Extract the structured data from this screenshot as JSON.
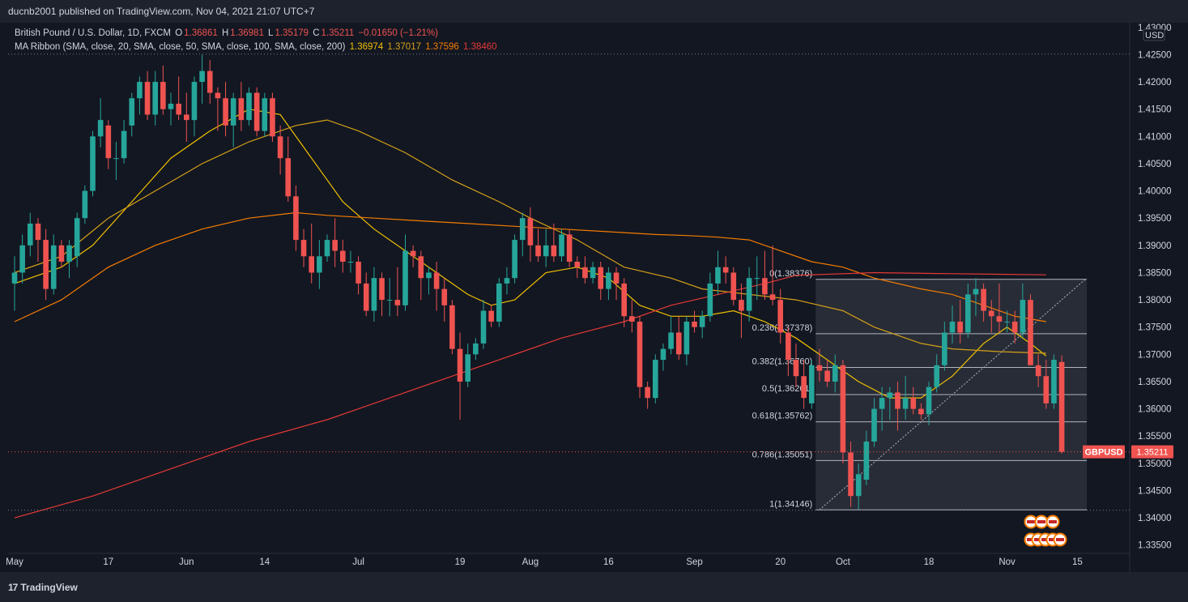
{
  "header": {
    "publisher": "ducnb2001 published on TradingView.com, Nov 04, 2021 21:07 UTC+7"
  },
  "legend": {
    "symbol": "British Pound / U.S. Dollar, 1D, FXCM",
    "o_label": "O",
    "o": "1.36861",
    "h_label": "H",
    "h": "1.36981",
    "l_label": "L",
    "l": "1.35179",
    "c_label": "C",
    "c": "1.35211",
    "change": "−0.01650 (−1.21%)",
    "ma_label": "MA Ribbon (SMA, close, 20, SMA, close, 50, SMA, close, 100, SMA, close, 200)",
    "ma20": "1.36974",
    "ma50": "1.37017",
    "ma100": "1.37596",
    "ma200": "1.38460"
  },
  "footer": {
    "brand": "TradingView"
  },
  "colors": {
    "up": "#26a69a",
    "down": "#ef5350",
    "ma20": "#f0c000",
    "ma50": "#d4a017",
    "ma100": "#f57c00",
    "ma200": "#e53935"
  },
  "chart_data": {
    "type": "candlestick",
    "currency": "USD",
    "y_ticks": [
      "1.43000",
      "1.42500",
      "1.42000",
      "1.41500",
      "1.41000",
      "1.40500",
      "1.40000",
      "1.39500",
      "1.39000",
      "1.38500",
      "1.38000",
      "1.37500",
      "1.37000",
      "1.36500",
      "1.36000",
      "1.35500",
      "1.35000",
      "1.34500",
      "1.34000",
      "1.33500"
    ],
    "ylim": [
      1.3305,
      1.4325
    ],
    "x_labels": [
      {
        "i": 0,
        "label": "May"
      },
      {
        "i": 12,
        "label": "17"
      },
      {
        "i": 22,
        "label": "Jun"
      },
      {
        "i": 32,
        "label": "14"
      },
      {
        "i": 44,
        "label": "Jul"
      },
      {
        "i": 57,
        "label": "19"
      },
      {
        "i": 66,
        "label": "Aug"
      },
      {
        "i": 76,
        "label": "16"
      },
      {
        "i": 87,
        "label": "Sep"
      },
      {
        "i": 98,
        "label": "20"
      },
      {
        "i": 106,
        "label": "Oct"
      },
      {
        "i": 117,
        "label": "18"
      },
      {
        "i": 127,
        "label": "Nov"
      },
      {
        "i": 136,
        "label": "15"
      }
    ],
    "last_price_label": "GBPUSD",
    "last_price": "1.35211",
    "high_line": 1.4251,
    "low_line": 1.3414,
    "candles": [
      [
        1.383,
        1.388,
        1.378,
        1.385
      ],
      [
        1.385,
        1.392,
        1.383,
        1.39
      ],
      [
        1.39,
        1.396,
        1.388,
        1.394
      ],
      [
        1.394,
        1.395,
        1.387,
        1.391
      ],
      [
        1.391,
        1.393,
        1.38,
        1.382
      ],
      [
        1.382,
        1.392,
        1.381,
        1.39
      ],
      [
        1.39,
        1.391,
        1.386,
        1.387
      ],
      [
        1.387,
        1.391,
        1.384,
        1.39
      ],
      [
        1.388,
        1.396,
        1.386,
        1.395
      ],
      [
        1.395,
        1.401,
        1.394,
        1.4
      ],
      [
        1.4,
        1.411,
        1.399,
        1.41
      ],
      [
        1.41,
        1.417,
        1.408,
        1.413
      ],
      [
        1.412,
        1.413,
        1.404,
        1.406
      ],
      [
        1.406,
        1.409,
        1.402,
        1.406
      ],
      [
        1.406,
        1.413,
        1.405,
        1.411
      ],
      [
        1.412,
        1.418,
        1.41,
        1.417
      ],
      [
        1.417,
        1.421,
        1.414,
        1.42
      ],
      [
        1.42,
        1.422,
        1.413,
        1.414
      ],
      [
        1.414,
        1.422,
        1.412,
        1.42
      ],
      [
        1.42,
        1.423,
        1.414,
        1.415
      ],
      [
        1.415,
        1.418,
        1.412,
        1.416
      ],
      [
        1.416,
        1.421,
        1.413,
        1.414
      ],
      [
        1.414,
        1.418,
        1.409,
        1.413
      ],
      [
        1.413,
        1.421,
        1.41,
        1.42
      ],
      [
        1.42,
        1.425,
        1.416,
        1.422
      ],
      [
        1.422,
        1.424,
        1.416,
        1.418
      ],
      [
        1.418,
        1.419,
        1.411,
        1.417
      ],
      [
        1.417,
        1.42,
        1.41,
        1.412
      ],
      [
        1.412,
        1.418,
        1.408,
        1.417
      ],
      [
        1.417,
        1.42,
        1.411,
        1.413
      ],
      [
        1.413,
        1.419,
        1.412,
        1.418
      ],
      [
        1.418,
        1.419,
        1.41,
        1.411
      ],
      [
        1.411,
        1.418,
        1.41,
        1.417
      ],
      [
        1.417,
        1.418,
        1.409,
        1.41
      ],
      [
        1.41,
        1.412,
        1.403,
        1.406
      ],
      [
        1.406,
        1.41,
        1.398,
        1.399
      ],
      [
        1.399,
        1.401,
        1.389,
        1.391
      ],
      [
        1.391,
        1.393,
        1.386,
        1.388
      ],
      [
        1.388,
        1.394,
        1.383,
        1.385
      ],
      [
        1.385,
        1.391,
        1.382,
        1.388
      ],
      [
        1.388,
        1.392,
        1.387,
        1.391
      ],
      [
        1.391,
        1.395,
        1.386,
        1.389
      ],
      [
        1.389,
        1.391,
        1.385,
        1.387
      ],
      [
        1.387,
        1.389,
        1.385,
        1.387
      ],
      [
        1.387,
        1.388,
        1.381,
        1.383
      ],
      [
        1.383,
        1.385,
        1.377,
        1.378
      ],
      [
        1.378,
        1.386,
        1.376,
        1.384
      ],
      [
        1.384,
        1.385,
        1.377,
        1.38
      ],
      [
        1.38,
        1.384,
        1.377,
        1.38
      ],
      [
        1.38,
        1.386,
        1.377,
        1.379
      ],
      [
        1.379,
        1.392,
        1.378,
        1.389
      ],
      [
        1.389,
        1.39,
        1.386,
        1.388
      ],
      [
        1.388,
        1.389,
        1.38,
        1.384
      ],
      [
        1.384,
        1.386,
        1.381,
        1.385
      ],
      [
        1.385,
        1.387,
        1.378,
        1.382
      ],
      [
        1.382,
        1.384,
        1.376,
        1.379
      ],
      [
        1.379,
        1.38,
        1.37,
        1.371
      ],
      [
        1.371,
        1.374,
        1.358,
        1.365
      ],
      [
        1.365,
        1.372,
        1.364,
        1.37
      ],
      [
        1.37,
        1.373,
        1.369,
        1.372
      ],
      [
        1.372,
        1.38,
        1.371,
        1.378
      ],
      [
        1.378,
        1.379,
        1.375,
        1.376
      ],
      [
        1.376,
        1.384,
        1.375,
        1.383
      ],
      [
        1.383,
        1.386,
        1.381,
        1.384
      ],
      [
        1.384,
        1.392,
        1.383,
        1.391
      ],
      [
        1.391,
        1.396,
        1.388,
        1.395
      ],
      [
        1.395,
        1.397,
        1.387,
        1.39
      ],
      [
        1.39,
        1.393,
        1.387,
        1.388
      ],
      [
        1.388,
        1.393,
        1.386,
        1.39
      ],
      [
        1.39,
        1.394,
        1.387,
        1.388
      ],
      [
        1.388,
        1.393,
        1.387,
        1.392
      ],
      [
        1.392,
        1.393,
        1.386,
        1.387
      ],
      [
        1.387,
        1.388,
        1.384,
        1.386
      ],
      [
        1.386,
        1.388,
        1.383,
        1.384
      ],
      [
        1.384,
        1.387,
        1.383,
        1.386
      ],
      [
        1.386,
        1.387,
        1.38,
        1.382
      ],
      [
        1.382,
        1.386,
        1.38,
        1.385
      ],
      [
        1.385,
        1.386,
        1.38,
        1.383
      ],
      [
        1.383,
        1.384,
        1.375,
        1.377
      ],
      [
        1.377,
        1.38,
        1.374,
        1.376
      ],
      [
        1.376,
        1.377,
        1.362,
        1.364
      ],
      [
        1.364,
        1.365,
        1.36,
        1.362
      ],
      [
        1.362,
        1.37,
        1.361,
        1.369
      ],
      [
        1.369,
        1.372,
        1.367,
        1.371
      ],
      [
        1.371,
        1.377,
        1.37,
        1.374
      ],
      [
        1.374,
        1.377,
        1.369,
        1.37
      ],
      [
        1.37,
        1.377,
        1.368,
        1.376
      ],
      [
        1.376,
        1.378,
        1.374,
        1.375
      ],
      [
        1.375,
        1.378,
        1.373,
        1.377
      ],
      [
        1.377,
        1.385,
        1.376,
        1.383
      ],
      [
        1.383,
        1.389,
        1.381,
        1.386
      ],
      [
        1.386,
        1.388,
        1.383,
        1.385
      ],
      [
        1.385,
        1.386,
        1.379,
        1.38
      ],
      [
        1.38,
        1.383,
        1.373,
        1.378
      ],
      [
        1.378,
        1.386,
        1.376,
        1.384
      ],
      [
        1.384,
        1.388,
        1.38,
        1.384
      ],
      [
        1.384,
        1.389,
        1.38,
        1.381
      ],
      [
        1.381,
        1.39,
        1.379,
        1.38
      ],
      [
        1.38,
        1.382,
        1.372,
        1.374
      ],
      [
        1.374,
        1.375,
        1.366,
        1.369
      ],
      [
        1.369,
        1.372,
        1.364,
        1.366
      ],
      [
        1.366,
        1.369,
        1.36,
        1.362
      ],
      [
        1.361,
        1.369,
        1.36,
        1.368
      ],
      [
        1.368,
        1.371,
        1.365,
        1.367
      ],
      [
        1.367,
        1.369,
        1.364,
        1.365
      ],
      [
        1.365,
        1.37,
        1.363,
        1.368
      ],
      [
        1.368,
        1.369,
        1.35,
        1.352
      ],
      [
        1.352,
        1.354,
        1.342,
        1.344
      ],
      [
        1.344,
        1.35,
        1.3415,
        1.348
      ],
      [
        1.347,
        1.356,
        1.346,
        1.354
      ],
      [
        1.354,
        1.362,
        1.353,
        1.36
      ],
      [
        1.36,
        1.364,
        1.356,
        1.362
      ],
      [
        1.362,
        1.364,
        1.358,
        1.363
      ],
      [
        1.363,
        1.365,
        1.356,
        1.36
      ],
      [
        1.36,
        1.366,
        1.358,
        1.362
      ],
      [
        1.362,
        1.364,
        1.359,
        1.36
      ],
      [
        1.36,
        1.361,
        1.358,
        1.359
      ],
      [
        1.359,
        1.365,
        1.357,
        1.364
      ],
      [
        1.364,
        1.37,
        1.363,
        1.368
      ],
      [
        1.368,
        1.376,
        1.367,
        1.374
      ],
      [
        1.374,
        1.379,
        1.372,
        1.376
      ],
      [
        1.376,
        1.38,
        1.372,
        1.374
      ],
      [
        1.374,
        1.383,
        1.373,
        1.381
      ],
      [
        1.381,
        1.384,
        1.377,
        1.382
      ],
      [
        1.382,
        1.383,
        1.376,
        1.378
      ],
      [
        1.378,
        1.38,
        1.374,
        1.377
      ],
      [
        1.377,
        1.383,
        1.374,
        1.376
      ],
      [
        1.376,
        1.378,
        1.374,
        1.376
      ],
      [
        1.376,
        1.378,
        1.372,
        1.374
      ],
      [
        1.374,
        1.383,
        1.373,
        1.38
      ],
      [
        1.38,
        1.381,
        1.369,
        1.368
      ],
      [
        1.368,
        1.37,
        1.364,
        1.366
      ],
      [
        1.366,
        1.369,
        1.36,
        1.361
      ],
      [
        1.361,
        1.37,
        1.36,
        1.369
      ],
      [
        1.3686,
        1.3698,
        1.3518,
        1.3521
      ]
    ],
    "ma_series": [
      {
        "period": 20,
        "color": "#f0c000",
        "values": [
          [
            0,
            1.383
          ],
          [
            6,
            1.386
          ],
          [
            10,
            1.39
          ],
          [
            15,
            1.398
          ],
          [
            20,
            1.406
          ],
          [
            25,
            1.411
          ],
          [
            30,
            1.415
          ],
          [
            34,
            1.414
          ],
          [
            38,
            1.406
          ],
          [
            42,
            1.398
          ],
          [
            46,
            1.393
          ],
          [
            50,
            1.389
          ],
          [
            54,
            1.385
          ],
          [
            58,
            1.381
          ],
          [
            61,
            1.379
          ],
          [
            64,
            1.38
          ],
          [
            68,
            1.385
          ],
          [
            72,
            1.386
          ],
          [
            76,
            1.384
          ],
          [
            80,
            1.379
          ],
          [
            84,
            1.377
          ],
          [
            88,
            1.377
          ],
          [
            92,
            1.378
          ],
          [
            96,
            1.376
          ],
          [
            100,
            1.373
          ],
          [
            104,
            1.369
          ],
          [
            108,
            1.365
          ],
          [
            112,
            1.362
          ],
          [
            116,
            1.362
          ],
          [
            120,
            1.366
          ],
          [
            124,
            1.372
          ],
          [
            127,
            1.375
          ],
          [
            130,
            1.372
          ],
          [
            132,
            1.3697
          ]
        ]
      },
      {
        "period": 50,
        "color": "#d4a017",
        "values": [
          [
            0,
            1.385
          ],
          [
            6,
            1.388
          ],
          [
            12,
            1.395
          ],
          [
            18,
            1.4
          ],
          [
            24,
            1.405
          ],
          [
            30,
            1.409
          ],
          [
            36,
            1.412
          ],
          [
            40,
            1.413
          ],
          [
            44,
            1.411
          ],
          [
            50,
            1.407
          ],
          [
            56,
            1.402
          ],
          [
            62,
            1.398
          ],
          [
            66,
            1.395
          ],
          [
            72,
            1.391
          ],
          [
            78,
            1.386
          ],
          [
            84,
            1.384
          ],
          [
            88,
            1.382
          ],
          [
            94,
            1.381
          ],
          [
            100,
            1.38
          ],
          [
            106,
            1.378
          ],
          [
            110,
            1.375
          ],
          [
            116,
            1.372
          ],
          [
            120,
            1.371
          ],
          [
            126,
            1.3705
          ],
          [
            132,
            1.3702
          ]
        ]
      },
      {
        "period": 100,
        "color": "#f57c00",
        "values": [
          [
            0,
            1.376
          ],
          [
            6,
            1.38
          ],
          [
            12,
            1.386
          ],
          [
            18,
            1.39
          ],
          [
            24,
            1.393
          ],
          [
            30,
            1.395
          ],
          [
            36,
            1.396
          ],
          [
            40,
            1.3955
          ],
          [
            46,
            1.395
          ],
          [
            52,
            1.3945
          ],
          [
            58,
            1.394
          ],
          [
            64,
            1.3935
          ],
          [
            70,
            1.393
          ],
          [
            76,
            1.3925
          ],
          [
            82,
            1.392
          ],
          [
            86,
            1.3918
          ],
          [
            90,
            1.3915
          ],
          [
            94,
            1.391
          ],
          [
            98,
            1.389
          ],
          [
            102,
            1.387
          ],
          [
            106,
            1.386
          ],
          [
            110,
            1.384
          ],
          [
            116,
            1.382
          ],
          [
            120,
            1.381
          ],
          [
            124,
            1.379
          ],
          [
            128,
            1.377
          ],
          [
            132,
            1.376
          ]
        ]
      },
      {
        "period": 200,
        "color": "#e53935",
        "values": [
          [
            0,
            1.34
          ],
          [
            10,
            1.344
          ],
          [
            20,
            1.349
          ],
          [
            30,
            1.354
          ],
          [
            40,
            1.358
          ],
          [
            50,
            1.363
          ],
          [
            60,
            1.368
          ],
          [
            70,
            1.373
          ],
          [
            78,
            1.376
          ],
          [
            84,
            1.379
          ],
          [
            90,
            1.381
          ],
          [
            96,
            1.383
          ],
          [
            100,
            1.3845
          ],
          [
            110,
            1.385
          ],
          [
            120,
            1.3848
          ],
          [
            126,
            1.3847
          ],
          [
            132,
            1.3846
          ]
        ]
      }
    ],
    "fib": {
      "levels": [
        {
          "label": "0(1.38376)",
          "value": 1.38376
        },
        {
          "label": "0.236(1.37378)",
          "value": 1.37378
        },
        {
          "label": "0.382(1.36760)",
          "value": 1.3676
        },
        {
          "label": "0.5(1.36261)",
          "value": 1.36261
        },
        {
          "label": "0.618(1.35762)",
          "value": 1.35762
        },
        {
          "label": "0.786(1.35051)",
          "value": 1.35051
        },
        {
          "label": "1(1.34146)",
          "value": 1.34146
        }
      ],
      "start_index": 102,
      "end_index": 137,
      "trend_from": [
        103,
        1.34146
      ],
      "trend_to": [
        137,
        1.38376
      ]
    }
  }
}
